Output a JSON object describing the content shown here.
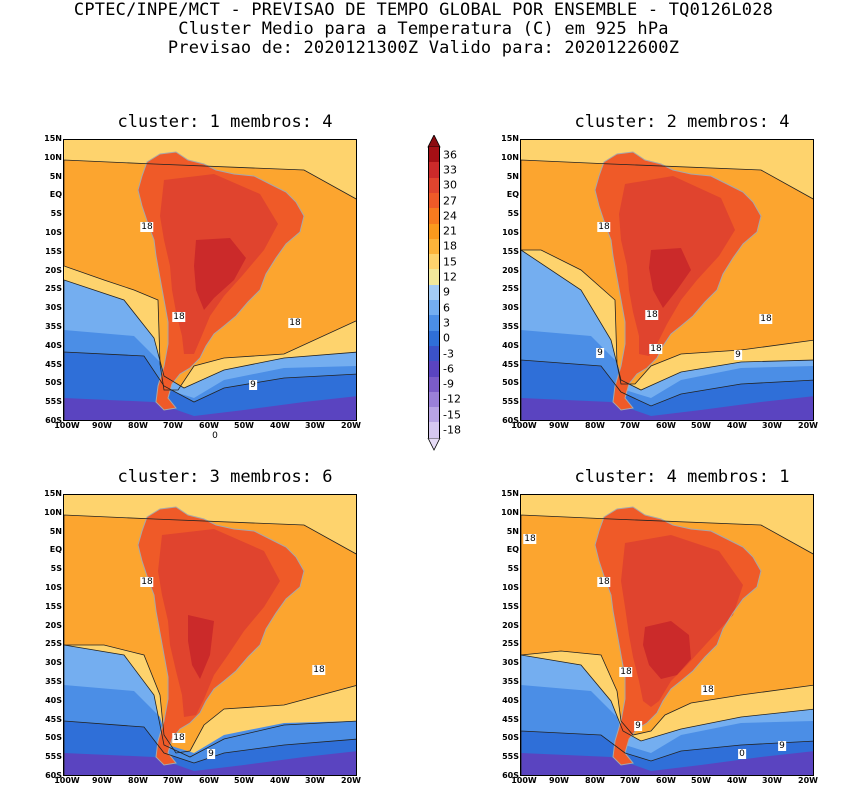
{
  "header": {
    "line1": "CPTEC/INPE/MCT - PREVISAO DE TEMPO GLOBAL POR ENSEMBLE - TQ0126L028",
    "line2": "Cluster Medio para a Temperatura (C) em 925 hPa",
    "line3": "Previsao de: 2020121300Z   Valido para: 2020122600Z"
  },
  "axes": {
    "lat_labels": [
      "15N",
      "10N",
      "5N",
      "EQ",
      "5S",
      "10S",
      "15S",
      "20S",
      "25S",
      "30S",
      "35S",
      "40S",
      "45S",
      "50S",
      "55S",
      "60S"
    ],
    "lon_labels": [
      "100W",
      "90W",
      "80W",
      "70W",
      "60W",
      "50W",
      "40W",
      "30W",
      "20W"
    ]
  },
  "colorbar": {
    "levels": [
      "36",
      "33",
      "30",
      "27",
      "24",
      "21",
      "18",
      "15",
      "12",
      "9",
      "6",
      "3",
      "0",
      "-3",
      "-6",
      "-9",
      "-12",
      "-15",
      "-18"
    ],
    "colors": [
      "#a50f15",
      "#cb2a2a",
      "#e0442e",
      "#ef5a28",
      "#f77b1f",
      "#fb9a1d",
      "#fdb43a",
      "#fed36d",
      "#f2e89a",
      "#a3cbf4",
      "#74aef0",
      "#4b8ee6",
      "#2f6fd8",
      "#3b52c8",
      "#5a44c0",
      "#7b5cc8",
      "#9a80d8",
      "#b8a4e4",
      "#d6c8f0"
    ],
    "top_color": "#8b0a10",
    "bottom_color": "#e6dcf6"
  },
  "panels": [
    {
      "title": "cluster: 1   membros: 4",
      "contour_labels": [
        "18",
        "18",
        "18",
        "9",
        "0"
      ]
    },
    {
      "title": "cluster: 2   membros: 4",
      "contour_labels": [
        "18",
        "18",
        "18",
        "18",
        "9",
        "9"
      ]
    },
    {
      "title": "cluster: 3   membros: 6",
      "contour_labels": [
        "18",
        "18",
        "18",
        "9"
      ]
    },
    {
      "title": "cluster: 4   membros: 1",
      "contour_labels": [
        "18",
        "18",
        "18",
        "18",
        "9",
        "9",
        "0"
      ]
    }
  ]
}
